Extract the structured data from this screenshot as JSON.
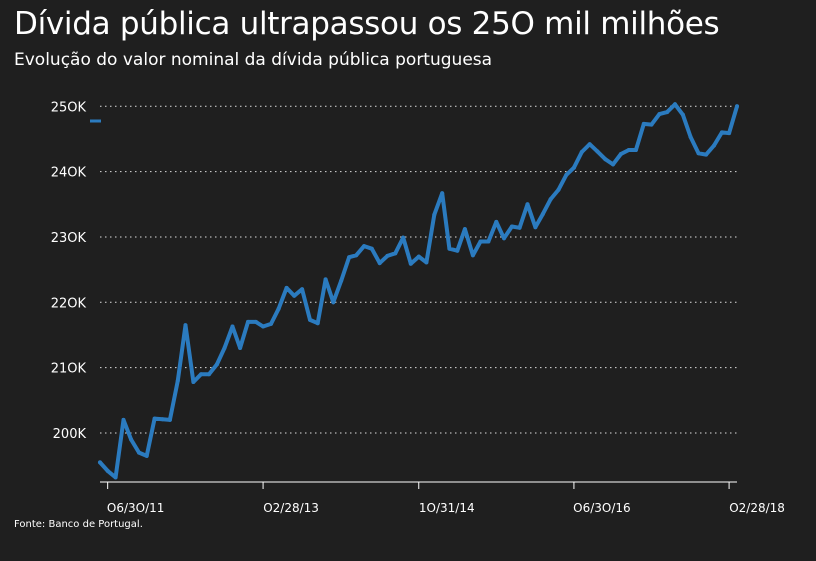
{
  "title": "Dívida pública ultrapassou os 25O mil milhões",
  "subtitle": "Evolução do valor nominal da dívida pública portuguesa",
  "source": "Fonte: Banco de Portugal.",
  "colors": {
    "background": "#1f1f1f",
    "line": "#2b7bbf",
    "grid": "#ffffff",
    "text": "#ffffff"
  },
  "chart_data": {
    "type": "line",
    "title": "Dívida pública ultrapassou os 25O mil milhões",
    "subtitle": "Evolução do valor nominal da dívida pública portuguesa",
    "ylim": [
      192500,
      250500
    ],
    "yticks": [
      {
        "value": 200000,
        "label": "200K"
      },
      {
        "value": 210000,
        "label": "21OK"
      },
      {
        "value": 220000,
        "label": "22OK"
      },
      {
        "value": 230000,
        "label": "23OK"
      },
      {
        "value": 240000,
        "label": "24OK"
      },
      {
        "value": 250000,
        "label": "25OK"
      }
    ],
    "xticks": [
      {
        "date": "2011-06-30",
        "label": "O6/3O/11"
      },
      {
        "date": "2013-02-28",
        "label": "O2/28/13"
      },
      {
        "date": "2014-10-31",
        "label": "1O/31/14"
      },
      {
        "date": "2016-06-30",
        "label": "O6/3O/16"
      },
      {
        "date": "2018-02-28",
        "label": "O2/28/18"
      }
    ],
    "grid": true,
    "legend": "top-left",
    "series": [
      {
        "x": [
          "2011-05-31",
          "2011-06-30",
          "2011-07-31",
          "2011-08-31",
          "2011-09-30",
          "2011-10-31",
          "2011-11-30",
          "2011-12-31",
          "2012-01-31",
          "2012-02-29",
          "2012-03-31",
          "2012-04-30",
          "2012-05-31",
          "2012-06-30",
          "2012-07-31",
          "2012-08-31",
          "2012-09-30",
          "2012-10-31",
          "2012-11-30",
          "2012-12-31",
          "2013-01-31",
          "2013-02-28",
          "2013-03-31",
          "2013-04-30",
          "2013-05-31",
          "2013-06-30",
          "2013-07-31",
          "2013-08-31",
          "2013-09-30",
          "2013-10-31",
          "2013-11-30",
          "2013-12-31",
          "2014-01-31",
          "2014-02-28",
          "2014-03-31",
          "2014-04-30",
          "2014-05-31",
          "2014-06-30",
          "2014-07-31",
          "2014-08-31",
          "2014-09-30",
          "2014-10-31",
          "2014-11-30",
          "2014-12-31",
          "2015-01-31",
          "2015-02-28",
          "2015-03-31",
          "2015-04-30",
          "2015-05-31",
          "2015-06-30",
          "2015-07-31",
          "2015-08-31",
          "2015-09-30",
          "2015-10-31",
          "2015-11-30",
          "2015-12-31",
          "2016-01-31",
          "2016-02-29",
          "2016-03-31",
          "2016-04-30",
          "2016-05-31",
          "2016-06-30",
          "2016-07-31",
          "2016-08-31",
          "2016-09-30",
          "2016-10-31",
          "2016-11-30",
          "2016-12-31",
          "2017-01-31",
          "2017-02-28",
          "2017-03-31",
          "2017-04-30",
          "2017-05-31",
          "2017-06-30",
          "2017-07-31",
          "2017-08-31",
          "2017-09-30",
          "2017-10-31",
          "2017-11-30",
          "2017-12-31",
          "2018-01-31",
          "2018-02-28",
          "2018-03-31"
        ],
        "values": [
          195500,
          194200,
          193200,
          202000,
          199000,
          197000,
          196500,
          202200,
          202100,
          202000,
          208000,
          216500,
          207800,
          209000,
          209000,
          210500,
          213000,
          216300,
          213000,
          217000,
          217000,
          216300,
          216700,
          219000,
          222200,
          221000,
          222000,
          217300,
          216800,
          223500,
          220000,
          223300,
          226900,
          227200,
          228600,
          228200,
          226000,
          227100,
          227500,
          229900,
          225900,
          227000,
          226100,
          233400,
          236700,
          228200,
          227900,
          231200,
          227200,
          229300,
          229300,
          232300,
          229800,
          231600,
          231400,
          235000,
          231500,
          233500,
          235800,
          237200,
          239500,
          240600,
          243000,
          244200,
          243100,
          241900,
          241100,
          242700,
          243300,
          243300,
          247300,
          247200,
          248800,
          249100,
          250300,
          248700,
          245300,
          242800,
          242600,
          244000,
          246000,
          245900,
          250000
        ]
      }
    ]
  }
}
